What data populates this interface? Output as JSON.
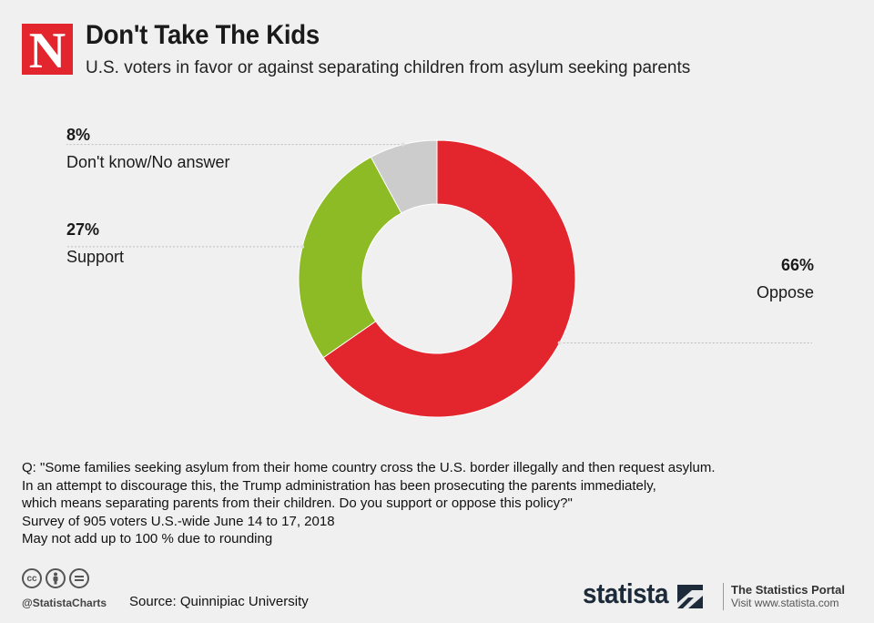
{
  "header": {
    "logo_letter": "N",
    "title": "Don't Take The Kids",
    "subtitle": "U.S. voters in favor or against separating children from asylum seeking parents"
  },
  "chart_data": {
    "type": "pie",
    "donut": true,
    "title": "Don't Take The Kids",
    "subtitle": "U.S. voters in favor or against separating children from asylum seeking parents",
    "slices": [
      {
        "label": "Oppose",
        "value": 66,
        "display": "66%",
        "color": "#e3262e"
      },
      {
        "label": "Support",
        "value": 27,
        "display": "27%",
        "color": "#8cbb26"
      },
      {
        "label": "Don't know/No answer",
        "value": 8,
        "display": "8%",
        "color": "#cccccc"
      }
    ]
  },
  "labels": {
    "dontknow": {
      "pct": "8%",
      "name": "Don't know/No answer"
    },
    "support": {
      "pct": "27%",
      "name": "Support"
    },
    "oppose": {
      "pct": "66%",
      "name": "Oppose"
    }
  },
  "notes": {
    "line1": "Q: \"Some families seeking asylum from their home country cross the U.S. border illegally and then request asylum.",
    "line2": "In an attempt to discourage this, the Trump administration has been prosecuting the parents immediately,",
    "line3": "which means separating parents from their children. Do you support or oppose this policy?\"",
    "line4": "Survey of 905 voters U.S.-wide June 14 to 17, 2018",
    "line5": "May not add up to 100 % due to rounding"
  },
  "footer": {
    "cc_icons": [
      "cc-icon",
      "by-icon",
      "nd-icon"
    ],
    "handle": "@StatistaCharts",
    "source": "Source: Quinnipiac University",
    "brand": "statista",
    "portal_title": "The Statistics Portal",
    "portal_url": "Visit www.statista.com"
  }
}
